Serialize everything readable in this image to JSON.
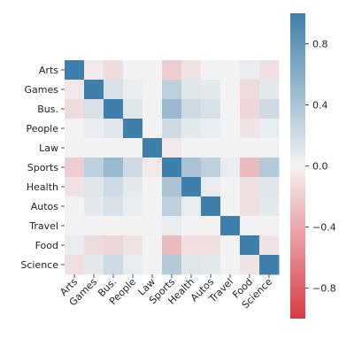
{
  "chart_data": {
    "type": "heatmap",
    "title": "",
    "xlabel": "",
    "ylabel": "",
    "rows": [
      "Arts",
      "Games",
      "Bus.",
      "People",
      "Law",
      "Sports",
      "Health",
      "Autos",
      "Travel",
      "Food",
      "Science"
    ],
    "cols": [
      "Arts",
      "Games",
      "Bus.",
      "People",
      "Law",
      "Sports",
      "Health",
      "Autos",
      "Travel",
      "Food",
      "Science"
    ],
    "values": [
      [
        1.0,
        -0.05,
        -0.12,
        0.0,
        0.0,
        -0.2,
        -0.08,
        0.0,
        0.0,
        0.05,
        -0.1
      ],
      [
        -0.05,
        1.0,
        0.15,
        0.05,
        0.0,
        0.3,
        0.1,
        0.08,
        0.0,
        -0.12,
        0.08
      ],
      [
        -0.12,
        0.15,
        1.0,
        0.1,
        0.0,
        0.5,
        0.2,
        0.15,
        0.0,
        -0.15,
        0.2
      ],
      [
        0.0,
        0.05,
        0.1,
        1.0,
        0.0,
        0.2,
        0.08,
        0.05,
        0.0,
        -0.08,
        0.05
      ],
      [
        0.0,
        0.0,
        0.0,
        0.0,
        1.0,
        -0.05,
        0.0,
        0.0,
        0.0,
        0.0,
        0.0
      ],
      [
        -0.2,
        0.3,
        0.5,
        0.2,
        -0.05,
        1.0,
        0.4,
        0.3,
        0.05,
        -0.3,
        0.35
      ],
      [
        -0.08,
        0.1,
        0.2,
        0.08,
        0.0,
        0.4,
        1.0,
        0.05,
        0.0,
        -0.1,
        0.1
      ],
      [
        0.0,
        0.08,
        0.15,
        0.05,
        0.0,
        0.3,
        0.05,
        1.0,
        0.0,
        -0.1,
        0.08
      ],
      [
        0.0,
        0.0,
        0.0,
        0.0,
        0.0,
        0.05,
        0.0,
        0.0,
        1.0,
        0.0,
        0.0
      ],
      [
        0.05,
        -0.12,
        -0.15,
        -0.08,
        0.0,
        -0.3,
        -0.1,
        -0.1,
        0.0,
        1.0,
        -0.08
      ],
      [
        -0.1,
        0.08,
        0.2,
        0.05,
        0.0,
        0.35,
        0.1,
        0.08,
        0.0,
        -0.08,
        1.0
      ]
    ],
    "vmin": -1.0,
    "vmax": 1.0,
    "colorbar": {
      "ticks": [
        -0.8,
        -0.4,
        0.0,
        0.4,
        0.8
      ],
      "tick_labels": [
        "−0.8",
        "−0.4",
        "0.0",
        "0.4",
        "0.8"
      ]
    },
    "colormap": {
      "low": "#DA3B46",
      "mid": "#F2F2F2",
      "high": "#3F7FAB"
    },
    "grid": false,
    "legend": "colorbar-right"
  }
}
